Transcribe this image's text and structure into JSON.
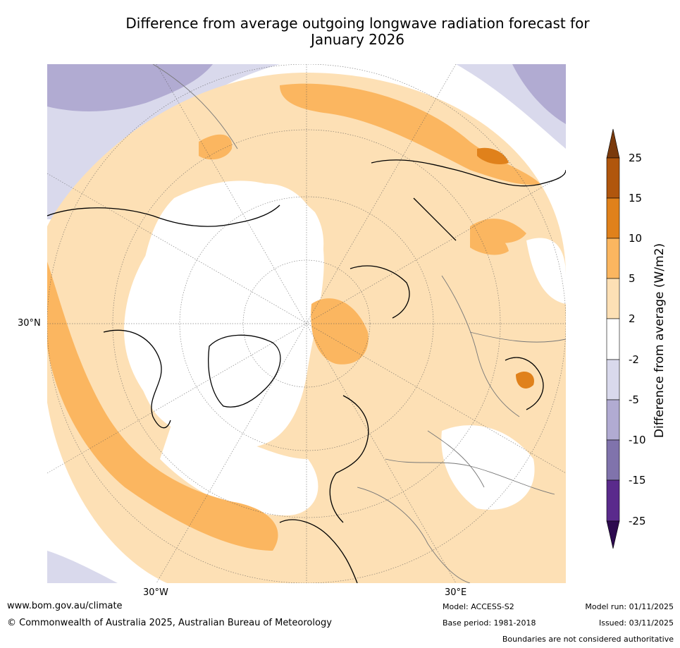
{
  "title_line1": "Difference from average outgoing longwave radiation forecast for",
  "title_line2": "January 2026",
  "axis_labels": {
    "lat_30n": "30°N",
    "lon_30w": "30°W",
    "lon_30e": "30°E"
  },
  "colorbar": {
    "label": "Difference from average (W/m2)",
    "ticks": [
      "25",
      "15",
      "10",
      "5",
      "2",
      "-2",
      "-5",
      "-10",
      "-15",
      "-25"
    ],
    "colors": {
      "gt25": "#7a3a0c",
      "15_25": "#b0560d",
      "10_15": "#e0811b",
      "5_10": "#fbb660",
      "2_5": "#fde0b5",
      "neg2_2": "#ffffff",
      "neg5_neg2": "#d9d9ec",
      "neg10_neg5": "#b1abd2",
      "neg15_neg10": "#8073ac",
      "neg25_neg15": "#5a2a8c",
      "lt_neg25": "#2d0a4f"
    }
  },
  "footer": {
    "website": "www.bom.gov.au/climate",
    "copyright": "© Commonwealth of Australia 2025, Australian Bureau of Meteorology",
    "model": "Model: ACCESS-S2",
    "base_period": "Base period: 1981-2018",
    "model_run": "Model run: 01/11/2025",
    "issued": "Issued: 03/11/2025",
    "disclaimer": "Boundaries are not considered authoritative"
  }
}
